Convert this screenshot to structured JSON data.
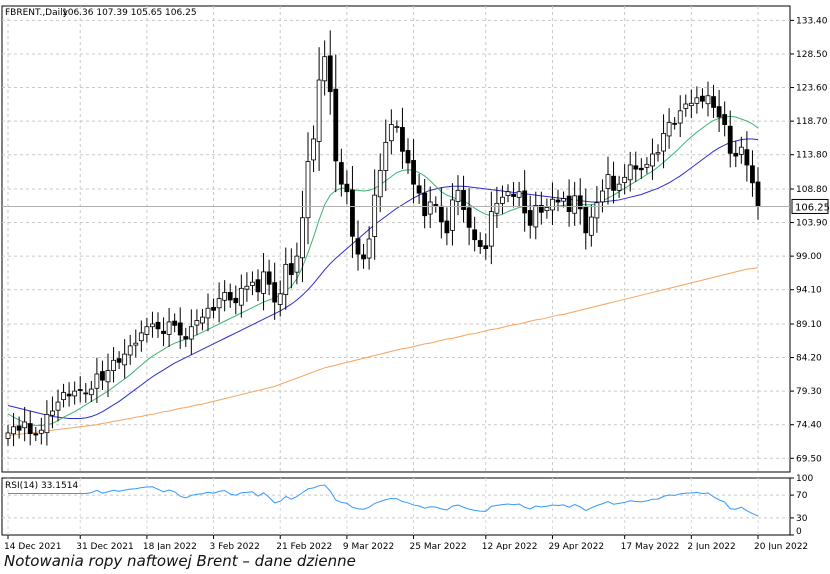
{
  "caption": "Notowania ropy naftowej Brent – dane dzienne",
  "chart_data": {
    "type": "candlestick",
    "symbol": "FBRENT.,Daily",
    "ohlc_header": "106.36 107.39 105.65 106.25",
    "last_price_label": "106.25",
    "last_price": 106.25,
    "ylim": [
      67.5,
      135.5
    ],
    "yticks": [
      "133.40",
      "128.50",
      "123.60",
      "118.70",
      "113.80",
      "108.80",
      "103.90",
      "99.00",
      "94.10",
      "89.10",
      "84.20",
      "79.30",
      "74.40",
      "69.50"
    ],
    "xticks": [
      "14 Dec 2021",
      "31 Dec 2021",
      "18 Jan 2022",
      "3 Feb 2022",
      "21 Feb 2022",
      "9 Mar 2022",
      "25 Mar 2022",
      "12 Apr 2022",
      "29 Apr 2022",
      "17 May 2022",
      "2 Jun 2022",
      "20 Jun 2022"
    ],
    "xtick_index": [
      0,
      13,
      25,
      37,
      49,
      61,
      73,
      86,
      98,
      111,
      123,
      135
    ],
    "grid": true,
    "colors": {
      "up": "#ffffff",
      "down": "#000000",
      "ma_fast": "#3cb371",
      "ma_mid": "#2b2bd0",
      "ma_slow": "#f4a460",
      "rsi": "#3399ff"
    },
    "closes": [
      73.2,
      74.1,
      73.6,
      74.8,
      73.1,
      72.9,
      73.6,
      75.9,
      76.4,
      77.7,
      79.1,
      78.6,
      79.3,
      79.4,
      78.9,
      79.6,
      81.8,
      80.9,
      82.3,
      83.8,
      83.5,
      84.7,
      85.9,
      86.3,
      87.8,
      88.7,
      89.1,
      88.4,
      87.7,
      89.4,
      88.9,
      87.5,
      86.9,
      88.7,
      89.6,
      90.1,
      91.4,
      91.1,
      92.8,
      93.7,
      92.6,
      92.2,
      94.3,
      94.6,
      95.2,
      93.8,
      96.7,
      94.9,
      92.3,
      93.5,
      97.8,
      96.3,
      99.0,
      104.6,
      112.8,
      116.1,
      124.7,
      128.1,
      123.0,
      112.9,
      109.5,
      108.4,
      101.9,
      99.3,
      98.6,
      101.5,
      107.9,
      111.5,
      115.6,
      118.2,
      117.9,
      114.3,
      112.6,
      109.5,
      108.2,
      104.9,
      106.9,
      106.4,
      104.0,
      102.4,
      107.2,
      108.6,
      105.8,
      103.2,
      101.4,
      100.4,
      100.1,
      105.5,
      106.7,
      107.6,
      108.4,
      107.7,
      108.4,
      105.3,
      103.5,
      106.4,
      105.4,
      106.1,
      107.3,
      106.9,
      107.4,
      105.5,
      107.8,
      105.9,
      102.4,
      104.7,
      106.8,
      108.5,
      110.9,
      108.6,
      109.5,
      110.5,
      112.3,
      111.7,
      111.6,
      112.4,
      113.9,
      114.1,
      116.9,
      118.5,
      118.3,
      120.2,
      121.2,
      121.3,
      122.1,
      121.6,
      122.4,
      120.7,
      119.3,
      118.2,
      114.0,
      113.6,
      114.9,
      112.3,
      109.7,
      106.25
    ],
    "ma_fast": [
      76.0,
      75.5,
      75.1,
      74.7,
      74.4,
      74.3,
      74.3,
      74.4,
      74.6,
      75.0,
      75.5,
      75.9,
      76.3,
      76.8,
      77.3,
      77.8,
      78.3,
      78.8,
      79.3,
      79.9,
      80.5,
      81.1,
      81.7,
      82.4,
      83.1,
      83.8,
      84.4,
      84.9,
      85.4,
      85.9,
      86.3,
      86.6,
      86.9,
      87.2,
      87.5,
      87.9,
      88.3,
      88.7,
      89.1,
      89.5,
      89.9,
      90.3,
      90.7,
      91.1,
      91.5,
      91.9,
      92.3,
      92.6,
      92.9,
      93.3,
      93.9,
      94.6,
      95.7,
      97.4,
      99.5,
      101.8,
      104.3,
      106.5,
      107.9,
      108.6,
      108.9,
      108.9,
      108.7,
      108.6,
      108.5,
      108.6,
      108.9,
      109.4,
      110.0,
      110.6,
      111.2,
      111.5,
      111.6,
      111.5,
      111.2,
      110.7,
      110.0,
      109.2,
      108.4,
      107.9,
      107.6,
      107.3,
      107.0,
      106.6,
      106.0,
      105.5,
      105.1,
      104.9,
      104.9,
      105.1,
      105.5,
      105.8,
      106.1,
      106.3,
      106.3,
      106.3,
      106.3,
      106.2,
      106.2,
      106.3,
      106.4,
      106.5,
      106.6,
      106.6,
      106.5,
      106.5,
      106.7,
      107.0,
      107.5,
      107.9,
      108.4,
      108.9,
      109.4,
      109.9,
      110.4,
      110.9,
      111.4,
      112.0,
      112.7,
      113.4,
      114.1,
      114.9,
      115.7,
      116.4,
      117.1,
      117.7,
      118.3,
      118.8,
      119.1,
      119.3,
      119.4,
      119.3,
      119.0,
      118.7,
      118.3,
      117.7
    ],
    "ma_mid": [
      77.2,
      77.0,
      76.8,
      76.6,
      76.4,
      76.2,
      76.0,
      75.8,
      75.6,
      75.5,
      75.4,
      75.3,
      75.3,
      75.3,
      75.4,
      75.6,
      75.9,
      76.3,
      76.8,
      77.3,
      77.8,
      78.4,
      79.0,
      79.6,
      80.2,
      80.8,
      81.4,
      81.9,
      82.4,
      82.9,
      83.4,
      83.8,
      84.2,
      84.6,
      85.0,
      85.4,
      85.8,
      86.2,
      86.6,
      87.0,
      87.4,
      87.8,
      88.2,
      88.6,
      89.0,
      89.4,
      89.8,
      90.2,
      90.6,
      91.0,
      91.5,
      92.0,
      92.6,
      93.3,
      94.1,
      95.0,
      96.0,
      97.0,
      97.9,
      98.7,
      99.4,
      100.1,
      100.8,
      101.5,
      102.2,
      102.9,
      103.6,
      104.2,
      104.8,
      105.4,
      106.0,
      106.5,
      107.0,
      107.5,
      107.9,
      108.3,
      108.6,
      108.8,
      109.0,
      109.1,
      109.2,
      109.2,
      109.2,
      109.1,
      109.0,
      108.9,
      108.8,
      108.7,
      108.6,
      108.5,
      108.4,
      108.3,
      108.2,
      108.1,
      108.0,
      107.9,
      107.8,
      107.7,
      107.6,
      107.5,
      107.4,
      107.3,
      107.2,
      107.1,
      107.0,
      106.9,
      106.9,
      106.9,
      107.0,
      107.1,
      107.2,
      107.4,
      107.6,
      107.8,
      108.0,
      108.3,
      108.6,
      108.9,
      109.3,
      109.7,
      110.2,
      110.7,
      111.3,
      111.9,
      112.5,
      113.1,
      113.7,
      114.3,
      114.8,
      115.2,
      115.6,
      115.8,
      116.0,
      116.1,
      116.1,
      116.0
    ],
    "ma_slow": [
      72.8,
      72.9,
      73.0,
      73.1,
      73.2,
      73.3,
      73.4,
      73.5,
      73.6,
      73.7,
      73.8,
      73.9,
      74.0,
      74.1,
      74.2,
      74.3,
      74.4,
      74.6,
      74.7,
      74.9,
      75.0,
      75.2,
      75.3,
      75.5,
      75.6,
      75.8,
      75.9,
      76.1,
      76.3,
      76.4,
      76.6,
      76.8,
      76.9,
      77.1,
      77.3,
      77.4,
      77.6,
      77.8,
      78.0,
      78.2,
      78.4,
      78.6,
      78.8,
      79.0,
      79.2,
      79.4,
      79.6,
      79.8,
      80.0,
      80.3,
      80.6,
      80.9,
      81.2,
      81.5,
      81.8,
      82.1,
      82.4,
      82.7,
      82.9,
      83.1,
      83.3,
      83.5,
      83.7,
      83.9,
      84.1,
      84.3,
      84.5,
      84.7,
      84.9,
      85.1,
      85.3,
      85.5,
      85.6,
      85.8,
      86.0,
      86.2,
      86.3,
      86.5,
      86.7,
      86.9,
      87.0,
      87.2,
      87.4,
      87.6,
      87.7,
      87.9,
      88.1,
      88.3,
      88.4,
      88.6,
      88.8,
      89.0,
      89.1,
      89.3,
      89.5,
      89.7,
      89.8,
      90.0,
      90.2,
      90.4,
      90.5,
      90.7,
      90.9,
      91.1,
      91.3,
      91.5,
      91.7,
      91.9,
      92.1,
      92.3,
      92.5,
      92.7,
      92.9,
      93.1,
      93.3,
      93.5,
      93.7,
      93.9,
      94.1,
      94.3,
      94.5,
      94.7,
      94.9,
      95.1,
      95.3,
      95.5,
      95.7,
      95.9,
      96.1,
      96.3,
      96.5,
      96.7,
      96.9,
      97.1,
      97.2,
      97.3
    ],
    "rsi_label": "RSI(14) 33.1514",
    "rsi_last": 33.1514,
    "rsi_ylim": [
      0,
      100
    ],
    "rsi_ticks": [
      "100",
      "70",
      "30",
      "0"
    ],
    "rsi_levels": [
      70,
      30
    ]
  }
}
